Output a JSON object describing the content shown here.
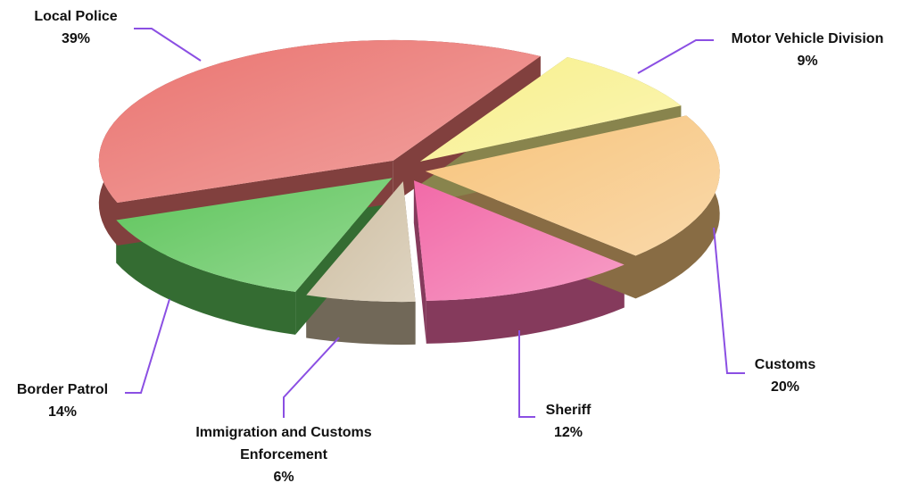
{
  "chart_data": {
    "type": "pie",
    "categories": [
      "Local Police",
      "Motor Vehicle Division",
      "Customs",
      "Sheriff",
      "Immigration and Customs Enforcement",
      "Border Patrol"
    ],
    "values": [
      39,
      9,
      20,
      12,
      6,
      14
    ],
    "value_labels": [
      "39%",
      "9%",
      "20%",
      "12%",
      "6%",
      "14%"
    ],
    "colors": [
      "#ea7470",
      "#f8f08c",
      "#f7c47c",
      "#f26aa8",
      "#cdbda0",
      "#5ec55b"
    ]
  }
}
